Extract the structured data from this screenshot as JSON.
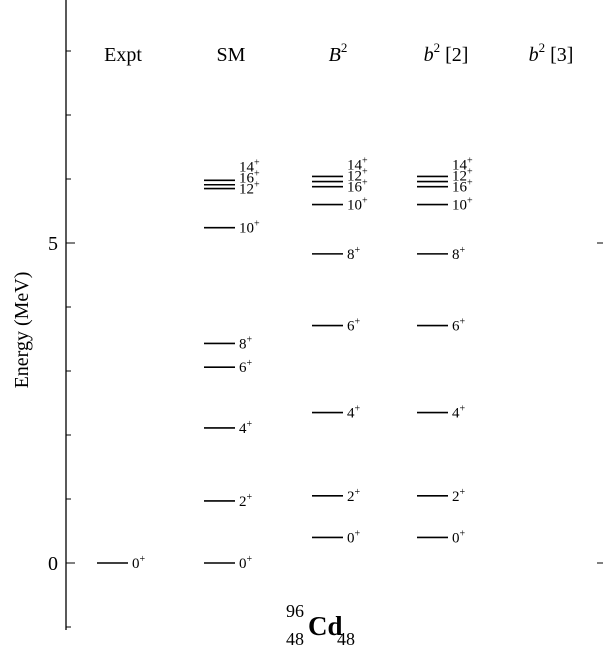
{
  "chart_data": {
    "type": "level-scheme",
    "ylabel": "Energy (MeV)",
    "ylim": [
      -1.05,
      8.7
    ],
    "yticks": [
      0,
      5
    ],
    "columns": [
      {
        "name": "Expt",
        "name_main": "Expt",
        "name_sup": "",
        "name_tail": "",
        "italic": false,
        "levels": [
          {
            "spin": "0",
            "parity": "+",
            "energy": 0.0
          }
        ]
      },
      {
        "name": "SM",
        "name_main": "SM",
        "name_sup": "",
        "name_tail": "",
        "italic": false,
        "levels": [
          {
            "spin": "0",
            "parity": "+",
            "energy": 0.0
          },
          {
            "spin": "2",
            "parity": "+",
            "energy": 0.97
          },
          {
            "spin": "4",
            "parity": "+",
            "energy": 2.11
          },
          {
            "spin": "6",
            "parity": "+",
            "energy": 3.06
          },
          {
            "spin": "8",
            "parity": "+",
            "energy": 3.43
          },
          {
            "spin": "10",
            "parity": "+",
            "energy": 5.24
          },
          {
            "spin": "12",
            "parity": "+",
            "energy": 5.85
          },
          {
            "spin": "16",
            "parity": "+",
            "energy": 5.91
          },
          {
            "spin": "14",
            "parity": "+",
            "energy": 5.98
          }
        ]
      },
      {
        "name": "B2",
        "name_main": "B",
        "name_sup": "2",
        "name_tail": "",
        "italic": true,
        "levels": [
          {
            "spin": "0",
            "parity": "+",
            "energy": 0.4
          },
          {
            "spin": "2",
            "parity": "+",
            "energy": 1.05
          },
          {
            "spin": "4",
            "parity": "+",
            "energy": 2.35
          },
          {
            "spin": "6",
            "parity": "+",
            "energy": 3.71
          },
          {
            "spin": "8",
            "parity": "+",
            "energy": 4.83
          },
          {
            "spin": "10",
            "parity": "+",
            "energy": 5.6
          },
          {
            "spin": "16",
            "parity": "+",
            "energy": 5.88
          },
          {
            "spin": "12",
            "parity": "+",
            "energy": 5.96
          },
          {
            "spin": "14",
            "parity": "+",
            "energy": 6.04
          }
        ]
      },
      {
        "name": "b2 [2]",
        "name_main": "b",
        "name_sup": "2",
        "name_tail": " [2]",
        "italic": true,
        "levels": [
          {
            "spin": "0",
            "parity": "+",
            "energy": 0.4
          },
          {
            "spin": "2",
            "parity": "+",
            "energy": 1.05
          },
          {
            "spin": "4",
            "parity": "+",
            "energy": 2.35
          },
          {
            "spin": "6",
            "parity": "+",
            "energy": 3.71
          },
          {
            "spin": "8",
            "parity": "+",
            "energy": 4.83
          },
          {
            "spin": "10",
            "parity": "+",
            "energy": 5.6
          },
          {
            "spin": "16",
            "parity": "+",
            "energy": 5.88
          },
          {
            "spin": "12",
            "parity": "+",
            "energy": 5.96
          },
          {
            "spin": "14",
            "parity": "+",
            "energy": 6.04
          }
        ]
      },
      {
        "name": "b2 [3]",
        "name_main": "b",
        "name_sup": "2",
        "name_tail": " [3]",
        "italic": true,
        "levels": []
      }
    ]
  },
  "nucleus": {
    "mass": "96",
    "z": "48",
    "symbol": "Cd",
    "n": "48"
  }
}
